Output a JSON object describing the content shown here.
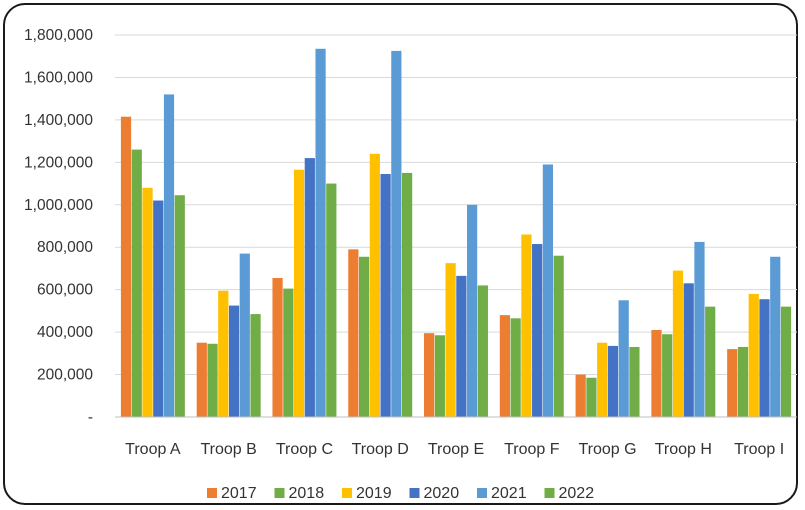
{
  "chart_data": {
    "type": "bar",
    "title": "",
    "xlabel": "",
    "ylabel": "",
    "categories": [
      "Troop A",
      "Troop B",
      "Troop C",
      "Troop D",
      "Troop E",
      "Troop F",
      "Troop G",
      "Troop H",
      "Troop I"
    ],
    "series": [
      {
        "name": "2017",
        "color": "#ED7D31",
        "values": [
          1415000,
          350000,
          655000,
          790000,
          395000,
          480000,
          200000,
          410000,
          320000
        ]
      },
      {
        "name": "2018",
        "color": "#70AD47",
        "values": [
          1260000,
          345000,
          605000,
          755000,
          385000,
          465000,
          185000,
          390000,
          330000
        ]
      },
      {
        "name": "2019",
        "color": "#FFC000",
        "values": [
          1080000,
          595000,
          1165000,
          1240000,
          725000,
          860000,
          350000,
          690000,
          580000
        ]
      },
      {
        "name": "2020",
        "color": "#4472C4",
        "values": [
          1020000,
          525000,
          1220000,
          1145000,
          665000,
          815000,
          335000,
          630000,
          555000
        ]
      },
      {
        "name": "2021",
        "color": "#5B9BD5",
        "values": [
          1520000,
          770000,
          1735000,
          1725000,
          1000000,
          1190000,
          550000,
          825000,
          755000
        ]
      },
      {
        "name": "2022",
        "color": "#70AD47",
        "values": [
          1045000,
          485000,
          1100000,
          1150000,
          620000,
          760000,
          330000,
          520000,
          520000
        ]
      }
    ],
    "ylim": [
      0,
      1800000
    ],
    "yticks": [
      {
        "value": 0,
        "label": "-"
      },
      {
        "value": 200000,
        "label": "200,000"
      },
      {
        "value": 400000,
        "label": "400,000"
      },
      {
        "value": 600000,
        "label": "600,000"
      },
      {
        "value": 800000,
        "label": "800,000"
      },
      {
        "value": 1000000,
        "label": "1,000,000"
      },
      {
        "value": 1200000,
        "label": "1,200,000"
      },
      {
        "value": 1400000,
        "label": "1,400,000"
      },
      {
        "value": 1600000,
        "label": "1,600,000"
      },
      {
        "value": 1800000,
        "label": "1,800,000"
      }
    ],
    "grid": true,
    "legend": "bottom"
  }
}
